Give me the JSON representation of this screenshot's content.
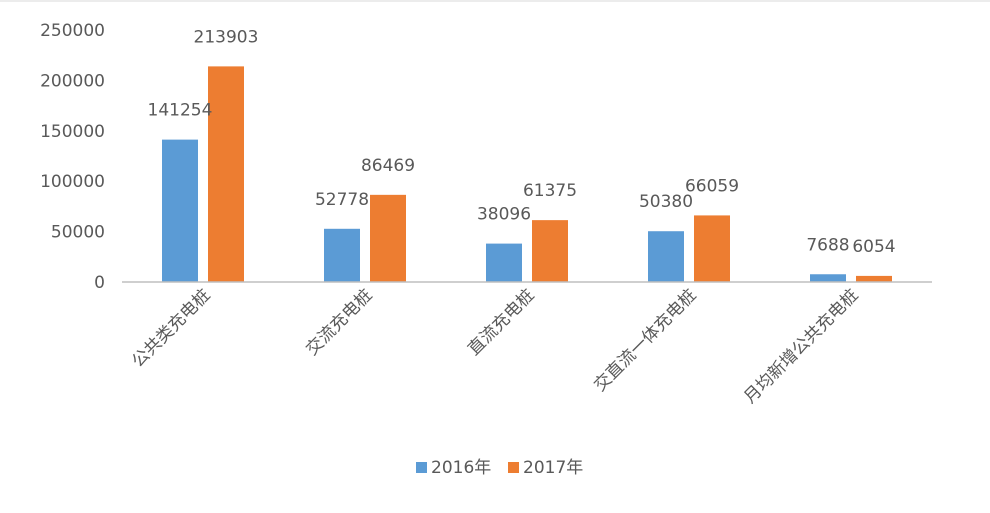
{
  "chart_data": {
    "type": "bar",
    "categories": [
      "公共类充电桩",
      "交流充电桩",
      "直流充电桩",
      "交直流一体充电桩",
      "月均新增公共充电桩"
    ],
    "series": [
      {
        "name": "2016年",
        "values": [
          141254,
          52778,
          38096,
          50380,
          7688
        ],
        "color": "#5B9BD5"
      },
      {
        "name": "2017年",
        "values": [
          213903,
          86469,
          61375,
          66059,
          6054
        ],
        "color": "#ED7D31"
      }
    ],
    "yticks": [
      0,
      50000,
      100000,
      150000,
      200000,
      250000
    ],
    "ylim": [
      0,
      250000
    ],
    "grid": false,
    "legend_position": "bottom",
    "data_labels": true
  }
}
